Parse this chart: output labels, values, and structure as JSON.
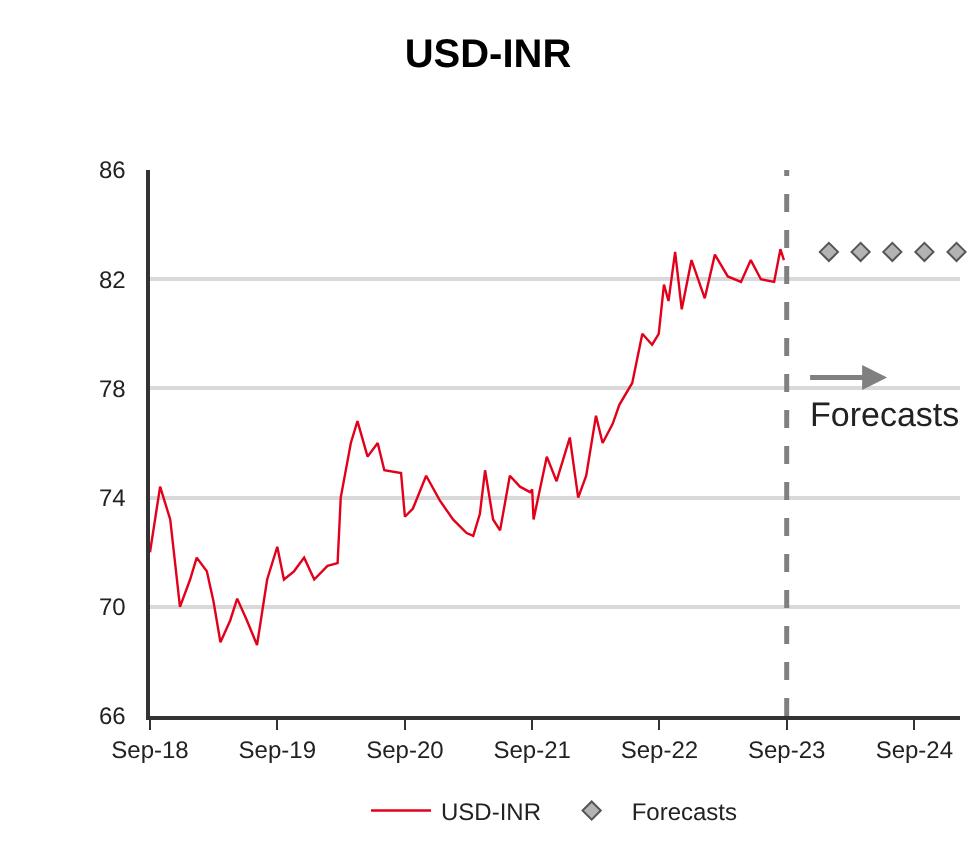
{
  "chart_data": {
    "type": "line",
    "title": "USD-INR",
    "xlim": [
      "2018-09-01",
      "2025-01-10"
    ],
    "xticks": [
      {
        "value": "2018-09-01",
        "label": "Sep-18"
      },
      {
        "value": "2019-09-01",
        "label": "Sep-19"
      },
      {
        "value": "2020-09-01",
        "label": "Sep-20"
      },
      {
        "value": "2021-09-01",
        "label": "Sep-21"
      },
      {
        "value": "2022-09-01",
        "label": "Sep-22"
      },
      {
        "value": "2023-09-01",
        "label": "Sep-23"
      },
      {
        "value": "2024-09-01",
        "label": "Sep-24"
      }
    ],
    "ylim": [
      66,
      86
    ],
    "yticks": [
      66,
      70,
      74,
      78,
      82,
      86
    ],
    "grid": "y",
    "legend": "bottom",
    "series": [
      {
        "name": "USD-INR",
        "color": "#e3001b",
        "line_style": "solid",
        "marker": "none",
        "x": [
          "2018-09-01",
          "2018-09-30",
          "2018-10-29",
          "2018-11-26",
          "2018-12-25",
          "2019-01-13",
          "2019-02-11",
          "2019-03-02",
          "2019-03-22",
          "2019-04-19",
          "2019-05-09",
          "2019-06-06",
          "2019-07-05",
          "2019-08-03",
          "2019-09-01",
          "2019-09-20",
          "2019-10-19",
          "2019-11-17",
          "2019-12-16",
          "2020-01-23",
          "2020-02-21",
          "2020-03-01",
          "2020-03-30",
          "2020-04-18",
          "2020-05-17",
          "2020-06-15",
          "2020-07-04",
          "2020-08-21",
          "2020-09-01",
          "2020-09-24",
          "2020-11-01",
          "2020-12-10",
          "2021-01-17",
          "2021-02-25",
          "2021-03-16",
          "2021-04-04",
          "2021-04-19",
          "2021-05-12",
          "2021-06-01",
          "2021-06-29",
          "2021-07-28",
          "2021-08-26",
          "2021-09-01",
          "2021-09-05",
          "2021-10-13",
          "2021-11-10",
          "2021-12-18",
          "2022-01-11",
          "2022-02-03",
          "2022-03-03",
          "2022-03-22",
          "2022-04-20",
          "2022-05-09",
          "2022-06-15",
          "2022-07-14",
          "2022-08-11",
          "2022-08-30",
          "2022-09-14",
          "2022-09-27",
          "2022-10-16",
          "2022-11-04",
          "2022-12-02",
          "2023-01-09",
          "2023-02-07",
          "2023-03-16",
          "2023-04-23",
          "2023-05-21",
          "2023-06-19",
          "2023-07-27",
          "2023-08-14",
          "2023-08-24"
        ],
        "values": [
          72.0,
          74.4,
          73.2,
          70.0,
          71.0,
          71.8,
          71.3,
          70.2,
          68.7,
          69.5,
          70.3,
          69.5,
          68.6,
          71.0,
          72.2,
          71.0,
          71.3,
          71.8,
          71.0,
          71.5,
          71.6,
          74.0,
          76.0,
          76.8,
          75.5,
          76.0,
          75.0,
          74.9,
          73.3,
          73.6,
          74.8,
          73.9,
          73.2,
          72.7,
          72.6,
          73.4,
          75.0,
          73.2,
          72.8,
          74.8,
          74.4,
          74.2,
          74.3,
          73.2,
          75.5,
          74.6,
          76.2,
          74.0,
          74.8,
          77.0,
          76.0,
          76.7,
          77.4,
          78.2,
          80.0,
          79.6,
          80.0,
          81.8,
          81.2,
          83.0,
          80.9,
          82.7,
          81.3,
          82.9,
          82.1,
          81.9,
          82.7,
          82.0,
          81.9,
          83.1,
          82.7
        ]
      },
      {
        "name": "Forecasts",
        "type": "scatter",
        "color": "#b3b3b3",
        "marker": "diamond",
        "x": [
          "2023-12-31",
          "2024-03-31",
          "2024-06-30",
          "2024-09-30",
          "2024-12-31"
        ],
        "values": [
          83,
          83,
          83,
          83,
          83
        ]
      }
    ],
    "ref_lines": [
      {
        "axis": "x",
        "value": "2023-09-01",
        "color": "#808080",
        "line_style": "dashed"
      }
    ],
    "annotations": [
      "Forecasts"
    ]
  }
}
